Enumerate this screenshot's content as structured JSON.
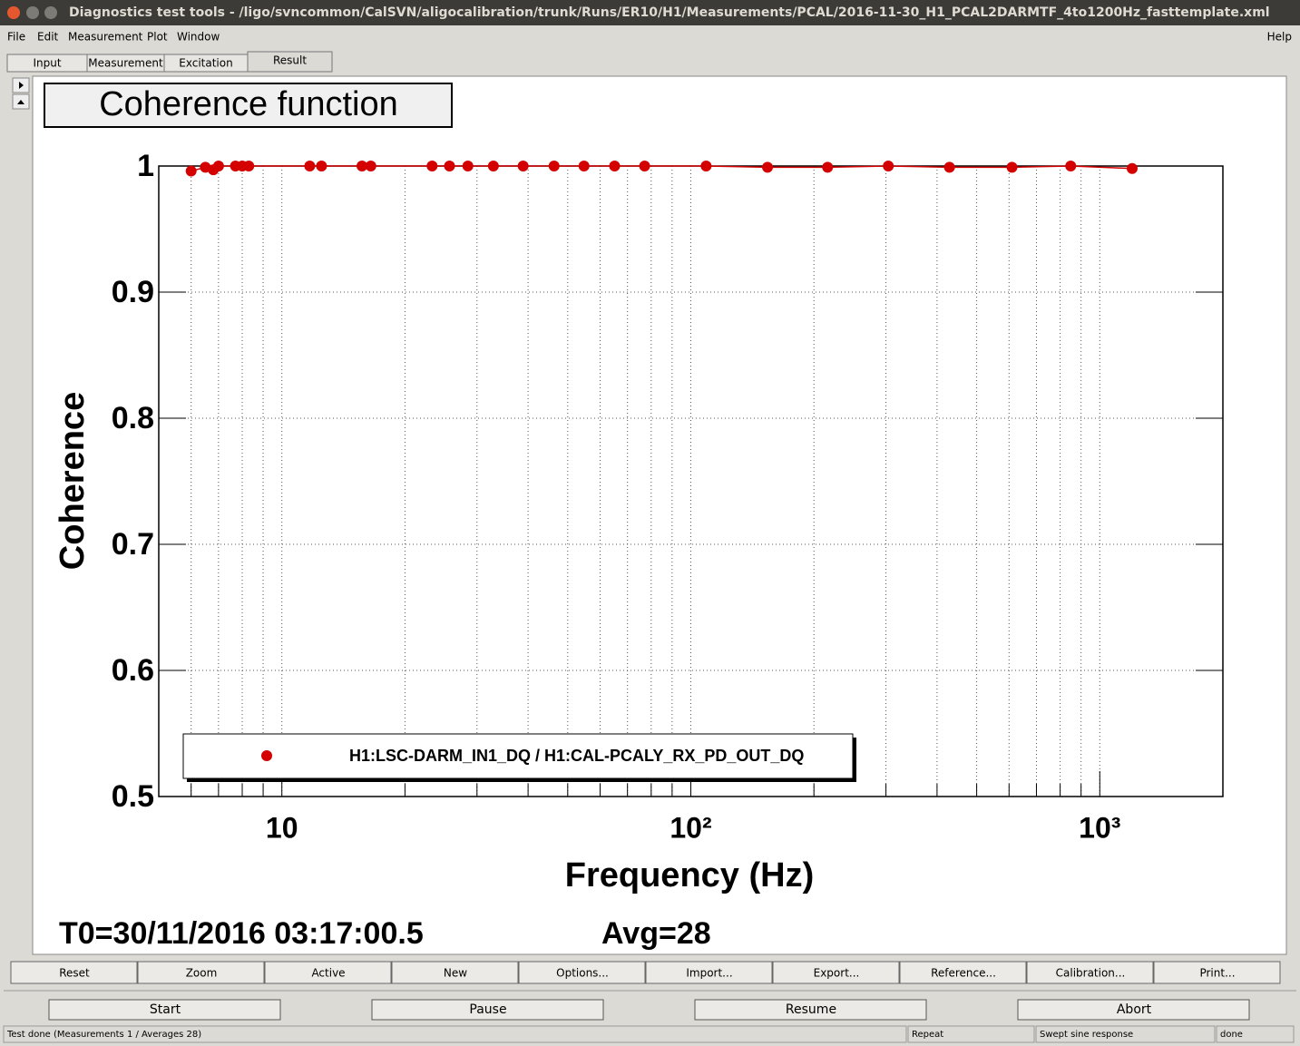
{
  "window": {
    "title": "Diagnostics test tools - /ligo/svncommon/CalSVN/aligocalibration/trunk/Runs/ER10/H1/Measurements/PCAL/2016-11-30_H1_PCAL2DARMTF_4to1200Hz_fasttemplate.xml",
    "menu": [
      "File",
      "Edit",
      "Measurement",
      "Plot",
      "Window"
    ],
    "help": "Help",
    "tabs": [
      "Input",
      "Measurement",
      "Excitation",
      "Result"
    ]
  },
  "chart_data": {
    "type": "scatter",
    "title": "Coherence function",
    "x_label": "Frequency (Hz)",
    "y_label": "Coherence",
    "log_x": true,
    "grid": true,
    "x": [
      6,
      6.5,
      6.8,
      7,
      7.7,
      8,
      8.3,
      11.7,
      12.5,
      15.7,
      16.5,
      23.3,
      25.7,
      28.5,
      32.9,
      38.9,
      46.3,
      54.8,
      65.1,
      77.1,
      109,
      154,
      216,
      304,
      429,
      610,
      849,
      1200
    ],
    "series": [
      {
        "name": "H1:LSC-DARM_IN1_DQ / H1:CAL-PCALY_RX_PD_OUT_DQ",
        "color": "#d40000",
        "values": [
          0.996,
          0.999,
          0.997,
          1,
          1,
          1,
          1,
          1,
          1,
          1,
          1,
          1,
          1,
          1,
          1,
          1,
          1,
          1,
          1,
          1,
          1,
          0.999,
          0.999,
          1,
          0.999,
          0.999,
          1,
          0.998
        ]
      }
    ],
    "xlim": [
      5,
      2000
    ],
    "xticks": [
      10,
      {
        "value": 100,
        "label": "10²"
      },
      {
        "value": 1000,
        "label": "10³"
      }
    ],
    "xminorticks": [
      6,
      7,
      8,
      9,
      20,
      30,
      40,
      50,
      60,
      70,
      80,
      90,
      200,
      300,
      400,
      500,
      600,
      700,
      800,
      900,
      2000
    ],
    "ylim": [
      0.5,
      1
    ],
    "yticks": [
      0.5,
      0.6,
      0.7,
      0.8,
      0.9,
      1
    ]
  },
  "plot_info": {
    "t0": "T0=30/11/2016 03:17:00.5",
    "avg": "Avg=28"
  },
  "plot_buttons": [
    "Reset",
    "Zoom",
    "Active",
    "New",
    "Options...",
    "Import...",
    "Export...",
    "Reference...",
    "Calibration...",
    "Print..."
  ],
  "run_buttons": [
    "Start",
    "Pause",
    "Resume",
    "Abort"
  ],
  "status": [
    "Test done (Measurements 1 / Averages 28)",
    "Repeat",
    "Swept sine response",
    "done"
  ]
}
